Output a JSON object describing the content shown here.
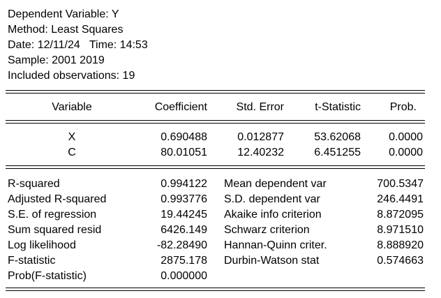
{
  "header": {
    "dependent_variable": "Dependent Variable: Y",
    "method": "Method: Least Squares",
    "datetime": "Date: 12/11/24   Time: 14:53",
    "sample": "Sample: 2001 2019",
    "observations": "Included observations: 19"
  },
  "coef_table": {
    "columns": [
      "Variable",
      "Coefficient",
      "Std. Error",
      "t-Statistic",
      "Prob."
    ],
    "rows": [
      {
        "variable": "X",
        "coefficient": "0.690488",
        "std_error": "0.012877",
        "t_statistic": "53.62068",
        "prob": "0.0000"
      },
      {
        "variable": "C",
        "coefficient": "80.01051",
        "std_error": "12.40232",
        "t_statistic": "6.451255",
        "prob": "0.0000"
      }
    ]
  },
  "stats": {
    "left": [
      {
        "label": "R-squared",
        "value": "0.994122"
      },
      {
        "label": "Adjusted R-squared",
        "value": "0.993776"
      },
      {
        "label": "S.E. of regression",
        "value": "19.44245"
      },
      {
        "label": "Sum squared resid",
        "value": "6426.149"
      },
      {
        "label": "Log likelihood",
        "value": "-82.28490"
      },
      {
        "label": "F-statistic",
        "value": "2875.178"
      },
      {
        "label": "Prob(F-statistic)",
        "value": "0.000000"
      }
    ],
    "right": [
      {
        "label": "Mean dependent var",
        "value": "700.5347"
      },
      {
        "label": "S.D. dependent var",
        "value": "246.4491"
      },
      {
        "label": "Akaike info criterion",
        "value": "8.872095"
      },
      {
        "label": "Schwarz criterion",
        "value": "8.971510"
      },
      {
        "label": "Hannan-Quinn criter.",
        "value": "8.888920"
      },
      {
        "label": "Durbin-Watson stat",
        "value": "0.574663"
      }
    ]
  }
}
